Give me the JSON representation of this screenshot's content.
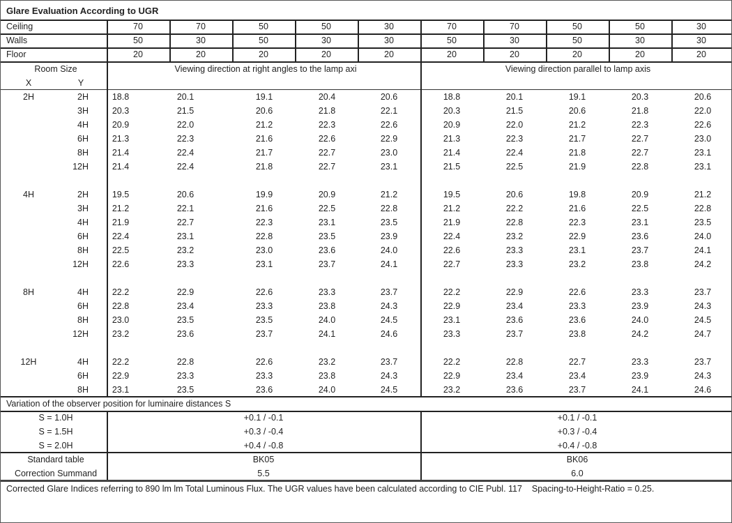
{
  "title": "Glare Evaluation According to UGR",
  "reflectances": [
    {
      "label": "Ceiling",
      "values": [
        "70",
        "70",
        "50",
        "50",
        "30",
        "70",
        "70",
        "50",
        "50",
        "30"
      ]
    },
    {
      "label": "Walls",
      "values": [
        "50",
        "30",
        "50",
        "30",
        "30",
        "50",
        "30",
        "50",
        "30",
        "30"
      ]
    },
    {
      "label": "Floor",
      "values": [
        "20",
        "20",
        "20",
        "20",
        "20",
        "20",
        "20",
        "20",
        "20",
        "20"
      ]
    }
  ],
  "room_size_label": "Room Size",
  "x_label": "X",
  "y_label": "Y",
  "direction_right_angles": "Viewing direction at right angles to the lamp axi",
  "direction_parallel": "Viewing direction parallel to lamp axis",
  "groups": [
    {
      "x": "2H",
      "rows": [
        {
          "y": "2H",
          "v": [
            "18.8",
            "20.1",
            "19.1",
            "20.4",
            "20.6",
            "18.8",
            "20.1",
            "19.1",
            "20.3",
            "20.6"
          ]
        },
        {
          "y": "3H",
          "v": [
            "20.3",
            "21.5",
            "20.6",
            "21.8",
            "22.1",
            "20.3",
            "21.5",
            "20.6",
            "21.8",
            "22.0"
          ]
        },
        {
          "y": "4H",
          "v": [
            "20.9",
            "22.0",
            "21.2",
            "22.3",
            "22.6",
            "20.9",
            "22.0",
            "21.2",
            "22.3",
            "22.6"
          ]
        },
        {
          "y": "6H",
          "v": [
            "21.3",
            "22.3",
            "21.6",
            "22.6",
            "22.9",
            "21.3",
            "22.3",
            "21.7",
            "22.7",
            "23.0"
          ]
        },
        {
          "y": "8H",
          "v": [
            "21.4",
            "22.4",
            "21.7",
            "22.7",
            "23.0",
            "21.4",
            "22.4",
            "21.8",
            "22.7",
            "23.1"
          ]
        },
        {
          "y": "12H",
          "v": [
            "21.4",
            "22.4",
            "21.8",
            "22.7",
            "23.1",
            "21.5",
            "22.5",
            "21.9",
            "22.8",
            "23.1"
          ]
        }
      ]
    },
    {
      "x": "4H",
      "rows": [
        {
          "y": "2H",
          "v": [
            "19.5",
            "20.6",
            "19.9",
            "20.9",
            "21.2",
            "19.5",
            "20.6",
            "19.8",
            "20.9",
            "21.2"
          ]
        },
        {
          "y": "3H",
          "v": [
            "21.2",
            "22.1",
            "21.6",
            "22.5",
            "22.8",
            "21.2",
            "22.2",
            "21.6",
            "22.5",
            "22.8"
          ]
        },
        {
          "y": "4H",
          "v": [
            "21.9",
            "22.7",
            "22.3",
            "23.1",
            "23.5",
            "21.9",
            "22.8",
            "22.3",
            "23.1",
            "23.5"
          ]
        },
        {
          "y": "6H",
          "v": [
            "22.4",
            "23.1",
            "22.8",
            "23.5",
            "23.9",
            "22.4",
            "23.2",
            "22.9",
            "23.6",
            "24.0"
          ]
        },
        {
          "y": "8H",
          "v": [
            "22.5",
            "23.2",
            "23.0",
            "23.6",
            "24.0",
            "22.6",
            "23.3",
            "23.1",
            "23.7",
            "24.1"
          ]
        },
        {
          "y": "12H",
          "v": [
            "22.6",
            "23.3",
            "23.1",
            "23.7",
            "24.1",
            "22.7",
            "23.3",
            "23.2",
            "23.8",
            "24.2"
          ]
        }
      ]
    },
    {
      "x": "8H",
      "rows": [
        {
          "y": "4H",
          "v": [
            "22.2",
            "22.9",
            "22.6",
            "23.3",
            "23.7",
            "22.2",
            "22.9",
            "22.6",
            "23.3",
            "23.7"
          ]
        },
        {
          "y": "6H",
          "v": [
            "22.8",
            "23.4",
            "23.3",
            "23.8",
            "24.3",
            "22.9",
            "23.4",
            "23.3",
            "23.9",
            "24.3"
          ]
        },
        {
          "y": "8H",
          "v": [
            "23.0",
            "23.5",
            "23.5",
            "24.0",
            "24.5",
            "23.1",
            "23.6",
            "23.6",
            "24.0",
            "24.5"
          ]
        },
        {
          "y": "12H",
          "v": [
            "23.2",
            "23.6",
            "23.7",
            "24.1",
            "24.6",
            "23.3",
            "23.7",
            "23.8",
            "24.2",
            "24.7"
          ]
        }
      ]
    },
    {
      "x": "12H",
      "rows": [
        {
          "y": "4H",
          "v": [
            "22.2",
            "22.8",
            "22.6",
            "23.2",
            "23.7",
            "22.2",
            "22.8",
            "22.7",
            "23.3",
            "23.7"
          ]
        },
        {
          "y": "6H",
          "v": [
            "22.9",
            "23.3",
            "23.3",
            "23.8",
            "24.3",
            "22.9",
            "23.4",
            "23.4",
            "23.9",
            "24.3"
          ]
        },
        {
          "y": "8H",
          "v": [
            "23.1",
            "23.5",
            "23.6",
            "24.0",
            "24.5",
            "23.2",
            "23.6",
            "23.7",
            "24.1",
            "24.6"
          ]
        }
      ]
    }
  ],
  "variation_title": "Variation of the observer position for luminaire distances S",
  "variations": [
    {
      "label": "S = 1.0H",
      "right_angles": "+0.1 / -0.1",
      "parallel": "+0.1 / -0.1"
    },
    {
      "label": "S = 1.5H",
      "right_angles": "+0.3 / -0.4",
      "parallel": "+0.3 / -0.4"
    },
    {
      "label": "S = 2.0H",
      "right_angles": "+0.4 / -0.8",
      "parallel": "+0.4 / -0.8"
    }
  ],
  "standard_table": {
    "label": "Standard table",
    "right_angles": "BK05",
    "parallel": "BK06"
  },
  "correction_summand": {
    "label": "Correction Summand",
    "right_angles": "5.5",
    "parallel": "6.0"
  },
  "footer": "Corrected Glare Indices referring to 890 lm lm Total Luminous Flux. The UGR values have been calculated according to CIE Publ. 117    Spacing-to-Height-Ratio = 0.25."
}
